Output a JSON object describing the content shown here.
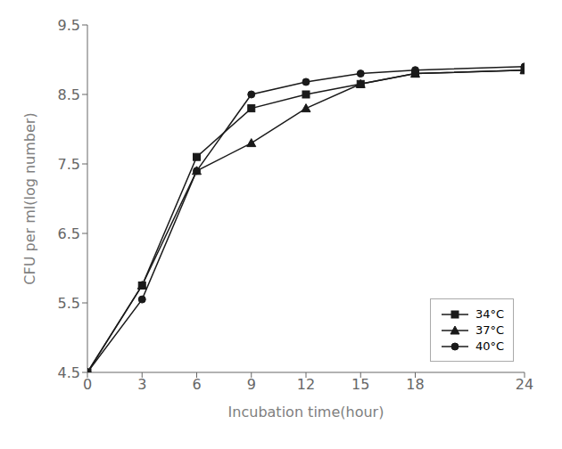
{
  "chart_data": {
    "type": "line",
    "x": [
      0,
      3,
      6,
      9,
      12,
      15,
      18,
      24
    ],
    "series": [
      {
        "name": "34°C",
        "color": "#1a1a1a",
        "marker": "square",
        "values": [
          4.5,
          5.75,
          7.6,
          8.3,
          8.5,
          8.65,
          8.8,
          8.85
        ]
      },
      {
        "name": "37°C",
        "color": "#1a1a1a",
        "marker": "triangle",
        "values": [
          4.5,
          5.75,
          7.4,
          7.8,
          8.3,
          8.65,
          8.8,
          8.85
        ]
      },
      {
        "name": "40°C",
        "color": "#1a1a1a",
        "marker": "circle",
        "values": [
          4.5,
          5.55,
          7.4,
          8.5,
          8.68,
          8.8,
          8.85,
          8.9
        ]
      }
    ],
    "xlabel": "Incubation time(hour)",
    "ylabel": "CFU per ml(log number)",
    "xlim": [
      0,
      24
    ],
    "ylim": [
      4.5,
      9.5
    ],
    "xticks": [
      0,
      3,
      6,
      9,
      12,
      15,
      18,
      24
    ],
    "yticks": [
      4.5,
      5.5,
      6.5,
      7.5,
      8.5,
      9.5
    ],
    "legend": "lower right",
    "grid": false
  }
}
